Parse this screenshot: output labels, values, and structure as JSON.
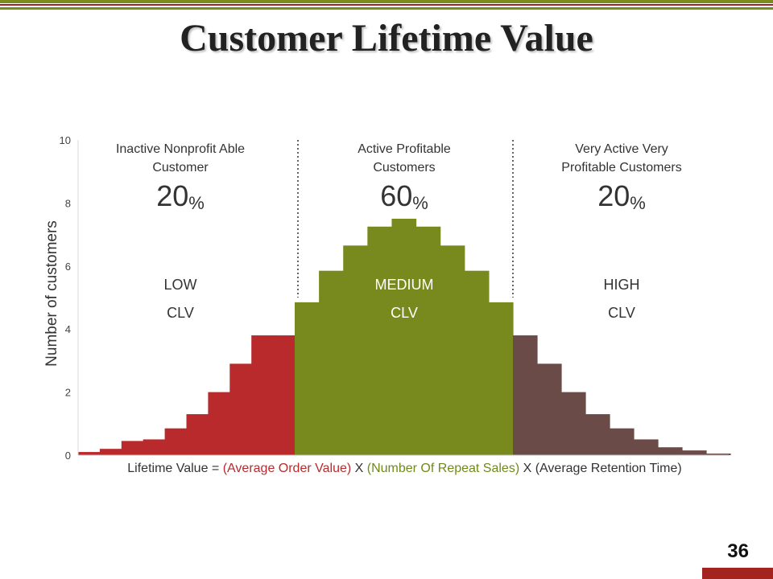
{
  "title": "Customer Lifetime Value",
  "page_number": "36",
  "colors": {
    "low": "#b82a2c",
    "medium": "#788a1e",
    "high": "#6b4b48",
    "formula_red": "#b82a2c",
    "formula_green": "#6f8a1a"
  },
  "formula": {
    "prefix": "Lifetime Value = ",
    "term1": "(Average Order Value)",
    "x1": " X ",
    "term2": "(Number Of Repeat Sales)",
    "x2": " X ",
    "term3": "(Average Retention Time)"
  },
  "segments": [
    {
      "heading_line1": "Inactive Nonprofit Able",
      "heading_line2": "Customer",
      "percent": "20",
      "percent_sign": "%",
      "level": "LOW",
      "clv": "CLV"
    },
    {
      "heading_line1": "Active Profitable",
      "heading_line2": "Customers",
      "percent": "60",
      "percent_sign": "%",
      "level": "MEDIUM",
      "clv": "CLV"
    },
    {
      "heading_line1": "Very Active Very",
      "heading_line2": "Profitable Customers",
      "percent": "20",
      "percent_sign": "%",
      "level": "HIGH",
      "clv": "CLV"
    }
  ],
  "chart_data": {
    "type": "bar",
    "ylabel": "Number of customers",
    "xlabel": "",
    "ylim": [
      0,
      10
    ],
    "yticks": [
      0,
      2,
      4,
      6,
      8,
      10
    ],
    "grid": false,
    "series": [
      {
        "name": "LOW CLV",
        "values": [
          0.1,
          0.2,
          0.45,
          0.5,
          0.85,
          1.3,
          2.0,
          2.9,
          3.8,
          3.8
        ],
        "color": "#b82a2c"
      },
      {
        "name": "MEDIUM CLV",
        "values": [
          4.85,
          5.85,
          6.65,
          7.25,
          7.5,
          7.25,
          6.65,
          5.85,
          4.85
        ],
        "color": "#788a1e"
      },
      {
        "name": "HIGH CLV",
        "values": [
          3.8,
          2.9,
          2.0,
          1.3,
          0.85,
          0.5,
          0.25,
          0.15,
          0.05
        ],
        "color": "#6b4b48"
      }
    ]
  }
}
